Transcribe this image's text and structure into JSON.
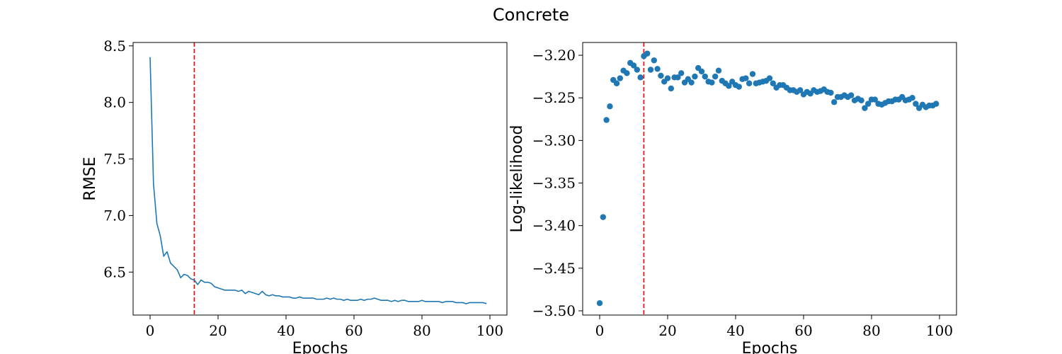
{
  "figure": {
    "title": "Concrete"
  },
  "colors": {
    "series": "#1f77b4",
    "marker_line": "#ff0000",
    "axes": "#000000"
  },
  "chart_data": [
    {
      "type": "line",
      "xlabel": "Epochs",
      "ylabel": "RMSE",
      "xlim": [
        -5,
        105
      ],
      "ylim": [
        6.12,
        8.53
      ],
      "xticks": [
        0,
        20,
        40,
        60,
        80,
        100
      ],
      "xtick_labels": [
        "0",
        "20",
        "40",
        "60",
        "80",
        "100"
      ],
      "yticks": [
        6.5,
        7.0,
        7.5,
        8.0,
        8.5
      ],
      "ytick_labels": [
        "6.5",
        "7.0",
        "7.5",
        "8.0",
        "8.5"
      ],
      "vline": {
        "x": 13,
        "style": "dashed",
        "color": "#ff0000"
      },
      "grid": false,
      "series": [
        {
          "x": [
            0,
            1,
            2,
            3,
            4,
            5,
            6,
            7,
            8,
            9,
            10,
            11,
            12,
            13,
            14,
            15,
            16,
            17,
            18,
            19,
            20,
            21,
            22,
            23,
            24,
            25,
            26,
            27,
            28,
            29,
            30,
            31,
            32,
            33,
            34,
            35,
            36,
            37,
            38,
            39,
            40,
            41,
            42,
            43,
            44,
            45,
            46,
            47,
            48,
            49,
            50,
            51,
            52,
            53,
            54,
            55,
            56,
            57,
            58,
            59,
            60,
            61,
            62,
            63,
            64,
            65,
            66,
            67,
            68,
            69,
            70,
            71,
            72,
            73,
            74,
            75,
            76,
            77,
            78,
            79,
            80,
            81,
            82,
            83,
            84,
            85,
            86,
            87,
            88,
            89,
            90,
            91,
            92,
            93,
            94,
            95,
            96,
            97,
            98,
            99
          ],
          "y": [
            8.4,
            7.28,
            6.93,
            6.82,
            6.64,
            6.68,
            6.58,
            6.55,
            6.52,
            6.45,
            6.48,
            6.47,
            6.44,
            6.43,
            6.39,
            6.43,
            6.41,
            6.41,
            6.4,
            6.37,
            6.36,
            6.35,
            6.34,
            6.34,
            6.34,
            6.34,
            6.33,
            6.34,
            6.31,
            6.33,
            6.32,
            6.31,
            6.3,
            6.33,
            6.3,
            6.29,
            6.3,
            6.29,
            6.29,
            6.28,
            6.28,
            6.28,
            6.27,
            6.27,
            6.28,
            6.27,
            6.27,
            6.27,
            6.27,
            6.26,
            6.26,
            6.26,
            6.27,
            6.26,
            6.27,
            6.26,
            6.26,
            6.25,
            6.26,
            6.25,
            6.25,
            6.25,
            6.26,
            6.25,
            6.26,
            6.26,
            6.27,
            6.26,
            6.25,
            6.25,
            6.25,
            6.24,
            6.25,
            6.24,
            6.25,
            6.25,
            6.24,
            6.24,
            6.24,
            6.24,
            6.25,
            6.24,
            6.24,
            6.24,
            6.24,
            6.24,
            6.23,
            6.24,
            6.24,
            6.24,
            6.23,
            6.23,
            6.23,
            6.22,
            6.23,
            6.23,
            6.23,
            6.23,
            6.23,
            6.22
          ]
        }
      ]
    },
    {
      "type": "scatter",
      "xlabel": "Epochs",
      "ylabel": "Log-likelihood",
      "xlim": [
        -5,
        105
      ],
      "ylim": [
        -3.505,
        -3.185
      ],
      "xticks": [
        0,
        20,
        40,
        60,
        80,
        100
      ],
      "xtick_labels": [
        "0",
        "20",
        "40",
        "60",
        "80",
        "100"
      ],
      "yticks": [
        -3.2,
        -3.25,
        -3.3,
        -3.35,
        -3.4,
        -3.45,
        -3.5
      ],
      "ytick_labels": [
        "−3.20",
        "−3.25",
        "−3.30",
        "−3.35",
        "−3.40",
        "−3.45",
        "−3.50"
      ],
      "vline": {
        "x": 13,
        "style": "dashed",
        "color": "#ff0000"
      },
      "grid": false,
      "series": [
        {
          "x": [
            0,
            1,
            2,
            3,
            4,
            5,
            6,
            7,
            8,
            9,
            10,
            11,
            12,
            13,
            14,
            15,
            16,
            17,
            18,
            19,
            20,
            21,
            22,
            23,
            24,
            25,
            26,
            27,
            28,
            29,
            30,
            31,
            32,
            33,
            34,
            35,
            36,
            37,
            38,
            39,
            40,
            41,
            42,
            43,
            44,
            45,
            46,
            47,
            48,
            49,
            50,
            51,
            52,
            53,
            54,
            55,
            56,
            57,
            58,
            59,
            60,
            61,
            62,
            63,
            64,
            65,
            66,
            67,
            68,
            69,
            70,
            71,
            72,
            73,
            74,
            75,
            76,
            77,
            78,
            79,
            80,
            81,
            82,
            83,
            84,
            85,
            86,
            87,
            88,
            89,
            90,
            91,
            92,
            93,
            94,
            95,
            96,
            97,
            98,
            99
          ],
          "y": [
            -3.491,
            -3.39,
            -3.276,
            -3.26,
            -3.229,
            -3.233,
            -3.227,
            -3.218,
            -3.221,
            -3.209,
            -3.212,
            -3.217,
            -3.226,
            -3.201,
            -3.198,
            -3.217,
            -3.206,
            -3.216,
            -3.224,
            -3.231,
            -3.227,
            -3.239,
            -3.226,
            -3.226,
            -3.221,
            -3.232,
            -3.228,
            -3.232,
            -3.225,
            -3.215,
            -3.219,
            -3.225,
            -3.231,
            -3.232,
            -3.225,
            -3.218,
            -3.23,
            -3.233,
            -3.236,
            -3.231,
            -3.235,
            -3.237,
            -3.228,
            -3.227,
            -3.233,
            -3.222,
            -3.233,
            -3.232,
            -3.231,
            -3.23,
            -3.227,
            -3.233,
            -3.238,
            -3.235,
            -3.235,
            -3.238,
            -3.241,
            -3.241,
            -3.243,
            -3.241,
            -3.246,
            -3.243,
            -3.245,
            -3.241,
            -3.243,
            -3.242,
            -3.24,
            -3.243,
            -3.244,
            -3.255,
            -3.249,
            -3.249,
            -3.247,
            -3.249,
            -3.247,
            -3.253,
            -3.251,
            -3.253,
            -3.262,
            -3.257,
            -3.252,
            -3.252,
            -3.257,
            -3.258,
            -3.256,
            -3.254,
            -3.254,
            -3.252,
            -3.252,
            -3.249,
            -3.253,
            -3.252,
            -3.25,
            -3.257,
            -3.262,
            -3.258,
            -3.261,
            -3.259,
            -3.259,
            -3.257
          ]
        }
      ]
    }
  ]
}
